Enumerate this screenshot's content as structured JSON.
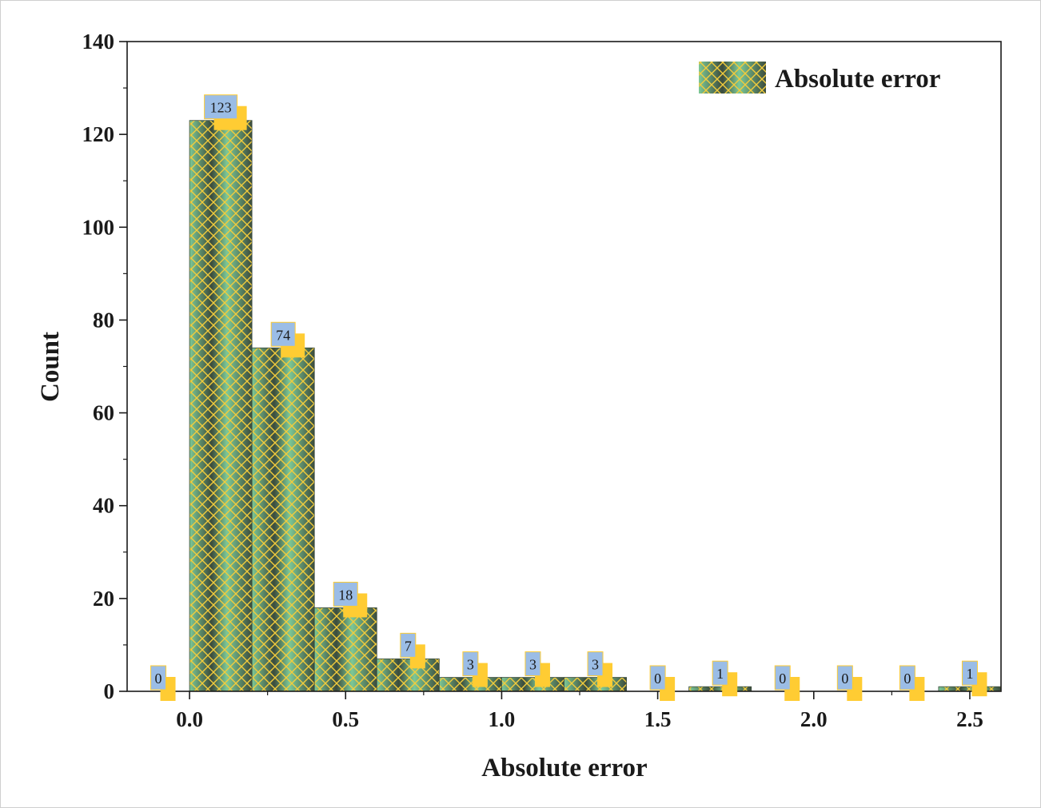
{
  "chart_data": {
    "type": "bar",
    "subtype": "histogram",
    "xlabel": "Absolute error",
    "ylabel": "Count",
    "xlim": [
      -0.2,
      2.6
    ],
    "ylim": [
      0,
      140
    ],
    "xticks": [
      "0.0",
      "0.5",
      "1.0",
      "1.5",
      "2.0",
      "2.5"
    ],
    "yticks": [
      "0",
      "20",
      "40",
      "60",
      "80",
      "100",
      "120",
      "140"
    ],
    "grid": false,
    "legend": {
      "position": "top-right",
      "entries": [
        "Absolute error"
      ]
    },
    "bin_width": 0.2,
    "bins": [
      {
        "center": -0.1,
        "value": 0,
        "label": "0"
      },
      {
        "center": 0.1,
        "value": 123,
        "label": "123"
      },
      {
        "center": 0.3,
        "value": 74,
        "label": "74"
      },
      {
        "center": 0.5,
        "value": 18,
        "label": "18"
      },
      {
        "center": 0.7,
        "value": 7,
        "label": "7"
      },
      {
        "center": 0.9,
        "value": 3,
        "label": "3"
      },
      {
        "center": 1.1,
        "value": 3,
        "label": "3"
      },
      {
        "center": 1.3,
        "value": 3,
        "label": "3"
      },
      {
        "center": 1.5,
        "value": 0,
        "label": "0"
      },
      {
        "center": 1.7,
        "value": 1,
        "label": "1"
      },
      {
        "center": 1.9,
        "value": 0,
        "label": "0"
      },
      {
        "center": 2.1,
        "value": 0,
        "label": "0"
      },
      {
        "center": 2.3,
        "value": 0,
        "label": "0"
      },
      {
        "center": 2.5,
        "value": 1,
        "label": "1"
      }
    ],
    "colors": {
      "bar_dark": "#3c4c3c",
      "bar_light": "#7dc896",
      "hatch": "#f2cc3c",
      "label_box": "#9bbde6",
      "label_shadow": "#ffcc33",
      "axis": "#1a1a1a"
    }
  }
}
